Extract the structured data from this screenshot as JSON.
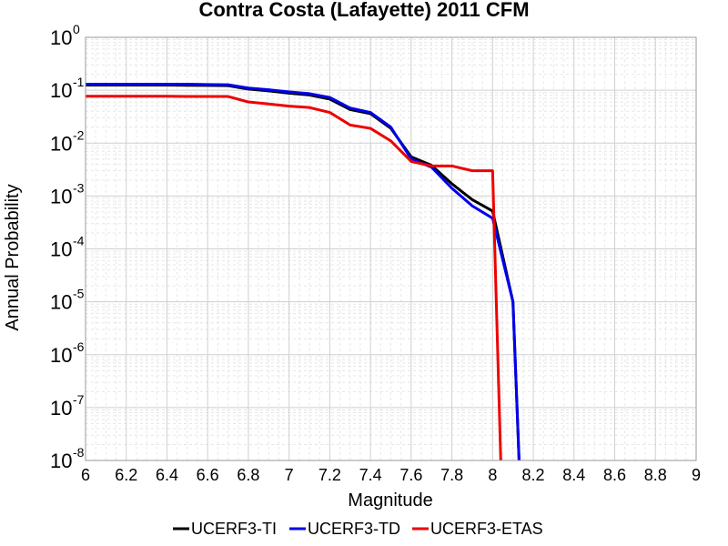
{
  "chart_data": {
    "type": "line",
    "title": "Contra Costa (Lafayette) 2011 CFM",
    "xlabel": "Magnitude",
    "ylabel": "Annual Probability",
    "xlim": [
      6,
      9
    ],
    "ylim": [
      1e-08,
      1
    ],
    "yscale": "log",
    "grid": true,
    "legend_position": "bottom",
    "x_ticks": [
      "6",
      "6.2",
      "6.4",
      "6.6",
      "6.8",
      "7",
      "7.2",
      "7.4",
      "7.6",
      "7.8",
      "8",
      "8.2",
      "8.4",
      "8.6",
      "8.8",
      "9"
    ],
    "y_ticks": [
      {
        "base": "10",
        "exp": "0"
      },
      {
        "base": "10",
        "exp": "-1"
      },
      {
        "base": "10",
        "exp": "-2"
      },
      {
        "base": "10",
        "exp": "-3"
      },
      {
        "base": "10",
        "exp": "-4"
      },
      {
        "base": "10",
        "exp": "-5"
      },
      {
        "base": "10",
        "exp": "-6"
      },
      {
        "base": "10",
        "exp": "-7"
      },
      {
        "base": "10",
        "exp": "-8"
      }
    ],
    "series": [
      {
        "name": "UCERF3-TI",
        "color": "#000000",
        "x": [
          6.0,
          6.1,
          6.2,
          6.3,
          6.4,
          6.5,
          6.6,
          6.7,
          6.8,
          6.9,
          7.0,
          7.1,
          7.2,
          7.3,
          7.4,
          7.5,
          7.6,
          7.7,
          7.8,
          7.9,
          8.0,
          8.1,
          8.13
        ],
        "y": [
          0.125,
          0.125,
          0.125,
          0.125,
          0.125,
          0.124,
          0.123,
          0.122,
          0.105,
          0.097,
          0.088,
          0.081,
          0.068,
          0.043,
          0.036,
          0.019,
          0.0055,
          0.0038,
          0.0017,
          0.00085,
          0.00052,
          1e-05,
          1e-08
        ]
      },
      {
        "name": "UCERF3-TD",
        "color": "#0000ee",
        "x": [
          6.0,
          6.1,
          6.2,
          6.3,
          6.4,
          6.5,
          6.6,
          6.7,
          6.8,
          6.9,
          7.0,
          7.1,
          7.2,
          7.3,
          7.4,
          7.5,
          7.6,
          7.7,
          7.8,
          7.9,
          8.0,
          8.1,
          8.13
        ],
        "y": [
          0.13,
          0.13,
          0.13,
          0.13,
          0.13,
          0.13,
          0.128,
          0.127,
          0.11,
          0.102,
          0.093,
          0.086,
          0.073,
          0.046,
          0.038,
          0.02,
          0.005,
          0.0035,
          0.0014,
          0.00065,
          0.00038,
          1e-05,
          1e-08
        ]
      },
      {
        "name": "UCERF3-ETAS",
        "color": "#ee0000",
        "x": [
          6.0,
          6.1,
          6.2,
          6.3,
          6.4,
          6.5,
          6.6,
          6.7,
          6.8,
          6.9,
          7.0,
          7.1,
          7.2,
          7.3,
          7.4,
          7.5,
          7.6,
          7.7,
          7.8,
          7.9,
          8.0,
          8.04
        ],
        "y": [
          0.077,
          0.077,
          0.077,
          0.077,
          0.077,
          0.076,
          0.076,
          0.076,
          0.06,
          0.055,
          0.05,
          0.047,
          0.038,
          0.022,
          0.019,
          0.011,
          0.0045,
          0.0037,
          0.0037,
          0.003,
          0.003,
          1e-08
        ]
      }
    ]
  }
}
